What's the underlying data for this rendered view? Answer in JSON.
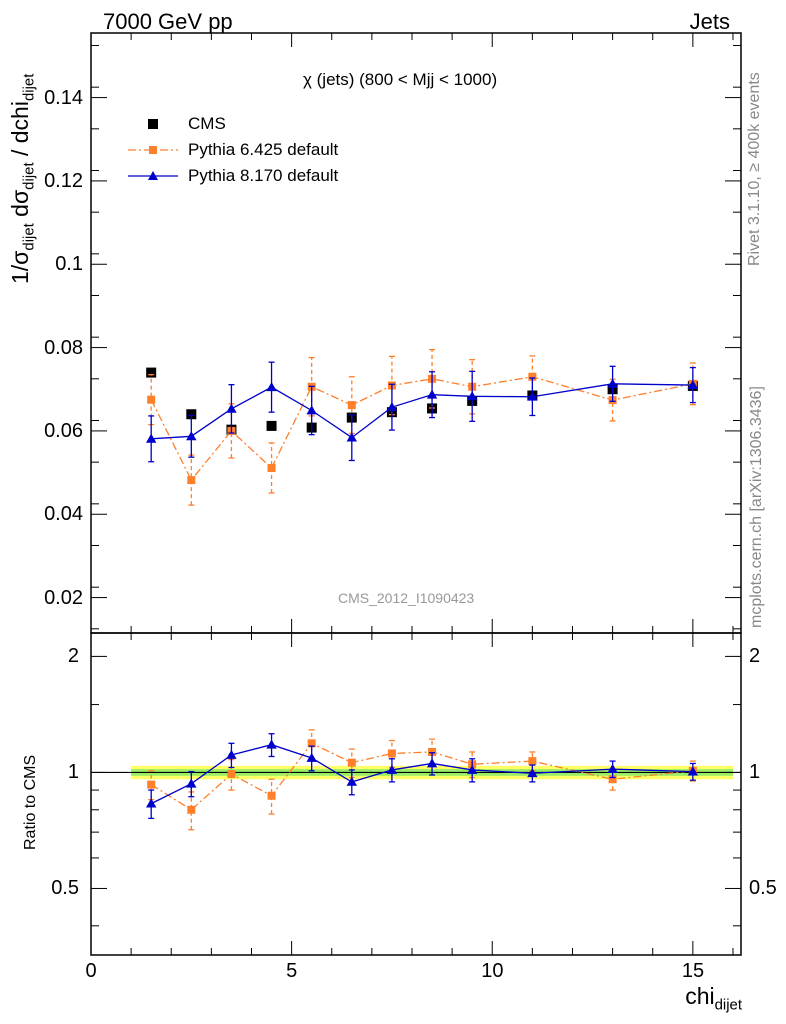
{
  "header": {
    "left": "7000 GeV pp",
    "right": "Jets"
  },
  "side_labels": {
    "rivet": "Rivet 3.1.10, ≥ 400k events",
    "mcplots": "mcplots.cern.ch [arXiv:1306.3436]"
  },
  "chart_data": {
    "type": "scatter",
    "title": "χ (jets) (800 < Mjj < 1000)",
    "analysis_tag": "CMS_2012_I1090423",
    "xlabel": "chi",
    "xlabel_sub": "dijet",
    "ylabel": "1/σ dσ / dchi",
    "ylabel_parts": {
      "a": "1/σ",
      "a_sub": "dijet",
      "b": " dσ",
      "b_sub": "dijet",
      "c": " / dchi",
      "c_sub": "dijet"
    },
    "ratio_ylabel": "Ratio to CMS",
    "xlim": [
      0,
      16.2
    ],
    "ylim": [
      0.0115,
      0.1555
    ],
    "ratio_ylim": [
      0.336,
      2.3
    ],
    "log_ratio": true,
    "x_ticks": [
      0,
      5,
      10,
      15
    ],
    "y_ticks": [
      0.02,
      0.04,
      0.06,
      0.08,
      0.1,
      0.12,
      0.14
    ],
    "y_tick_labels": [
      "0.02",
      "0.04",
      "0.06",
      "0.08",
      "0.1",
      "0.12",
      "0.14"
    ],
    "ratio_ticks": [
      0.5,
      1,
      2
    ],
    "legend_position": "top-left",
    "x": [
      1.5,
      2.5,
      3.5,
      4.5,
      5.5,
      6.5,
      7.5,
      8.5,
      9.5,
      11,
      13,
      15
    ],
    "data_band": {
      "inner": 0.02,
      "outer": 0.04,
      "x_range": [
        1,
        16
      ]
    },
    "series": [
      {
        "name": "CMS",
        "marker": "square",
        "color": "#000000",
        "values": [
          0.074,
          0.064,
          0.0603,
          0.0612,
          0.0608,
          0.0632,
          0.0645,
          0.0654,
          0.0672,
          0.0685,
          0.07,
          0.0708
        ],
        "errors": [
          0.0005,
          0.0005,
          0.0005,
          0.0005,
          0.0005,
          0.0005,
          0.0005,
          0.0005,
          0.0005,
          0.0005,
          0.0005,
          0.0005
        ]
      },
      {
        "name": "Pythia 6.425 default",
        "marker": "square",
        "line": "dashdot",
        "color": "#ff7f2a",
        "values": [
          0.0675,
          0.0482,
          0.06,
          0.0511,
          0.0706,
          0.0662,
          0.0709,
          0.0725,
          0.0706,
          0.073,
          0.0674,
          0.0713
        ],
        "errors": [
          0.006,
          0.006,
          0.0065,
          0.006,
          0.007,
          0.0068,
          0.007,
          0.007,
          0.0065,
          0.005,
          0.005,
          0.005
        ]
      },
      {
        "name": "Pythia 8.170 default",
        "marker": "triangle",
        "line": "solid",
        "color": "#0000cc",
        "values": [
          0.0581,
          0.0587,
          0.0653,
          0.0705,
          0.0649,
          0.0584,
          0.0657,
          0.0687,
          0.0683,
          0.0682,
          0.0713,
          0.071
        ],
        "errors": [
          0.0055,
          0.005,
          0.0058,
          0.006,
          0.0058,
          0.0055,
          0.0055,
          0.0055,
          0.006,
          0.0045,
          0.0042,
          0.0042
        ]
      }
    ],
    "ratios": [
      {
        "series": "Pythia 6.425 default",
        "values": [
          0.93,
          0.8,
          0.99,
          0.87,
          1.19,
          1.06,
          1.12,
          1.13,
          1.05,
          1.07,
          0.96,
          1.01
        ],
        "errors": [
          0.08,
          0.09,
          0.09,
          0.09,
          0.1,
          0.09,
          0.09,
          0.09,
          0.08,
          0.06,
          0.06,
          0.06
        ]
      },
      {
        "series": "Pythia 8.170 default",
        "values": [
          0.83,
          0.935,
          1.11,
          1.18,
          1.09,
          0.945,
          1.015,
          1.055,
          1.015,
          0.995,
          1.02,
          1.005
        ],
        "errors": [
          0.07,
          0.07,
          0.08,
          0.08,
          0.08,
          0.07,
          0.07,
          0.07,
          0.07,
          0.05,
          0.05,
          0.05
        ]
      }
    ]
  }
}
